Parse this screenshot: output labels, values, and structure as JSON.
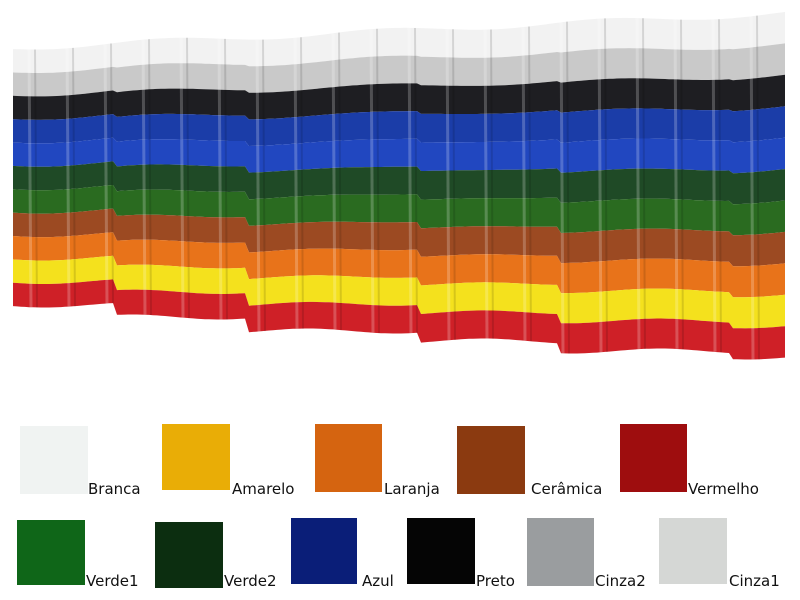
{
  "panel_stripes": [
    {
      "name": "white",
      "color": "#f2f2f2"
    },
    {
      "name": "light-gray",
      "color": "#c9c9c9"
    },
    {
      "name": "black",
      "color": "#1e1e22"
    },
    {
      "name": "blue",
      "color": "#1b3da8"
    },
    {
      "name": "blue-bright",
      "color": "#2147c0"
    },
    {
      "name": "dark-green",
      "color": "#1f4a26"
    },
    {
      "name": "green",
      "color": "#2a6b20"
    },
    {
      "name": "ceramic",
      "color": "#9c4a22"
    },
    {
      "name": "orange",
      "color": "#e8731a"
    },
    {
      "name": "yellow",
      "color": "#f4e11d"
    },
    {
      "name": "red",
      "color": "#cf2027"
    }
  ],
  "swatches": [
    {
      "id": "branca",
      "label": "Branca",
      "color": "#f0f3f2"
    },
    {
      "id": "amarelo",
      "label": "Amarelo",
      "color": "#e9ad06"
    },
    {
      "id": "laranja",
      "label": "Laranja",
      "color": "#d56410"
    },
    {
      "id": "ceramica",
      "label": "Cerâmica",
      "color": "#8b3a10"
    },
    {
      "id": "vermelho",
      "label": "Vermelho",
      "color": "#9e0d0e"
    },
    {
      "id": "verde1",
      "label": "Verde1",
      "color": "#0f6618"
    },
    {
      "id": "verde2",
      "label": "Verde2",
      "color": "#0c2e10"
    },
    {
      "id": "azul",
      "label": "Azul",
      "color": "#0a1e78"
    },
    {
      "id": "preto",
      "label": "Preto",
      "color": "#050505"
    },
    {
      "id": "cinza2",
      "label": "Cinza2",
      "color": "#9a9d9f"
    },
    {
      "id": "cinza1",
      "label": "Cinza1",
      "color": "#d5d7d5"
    }
  ]
}
